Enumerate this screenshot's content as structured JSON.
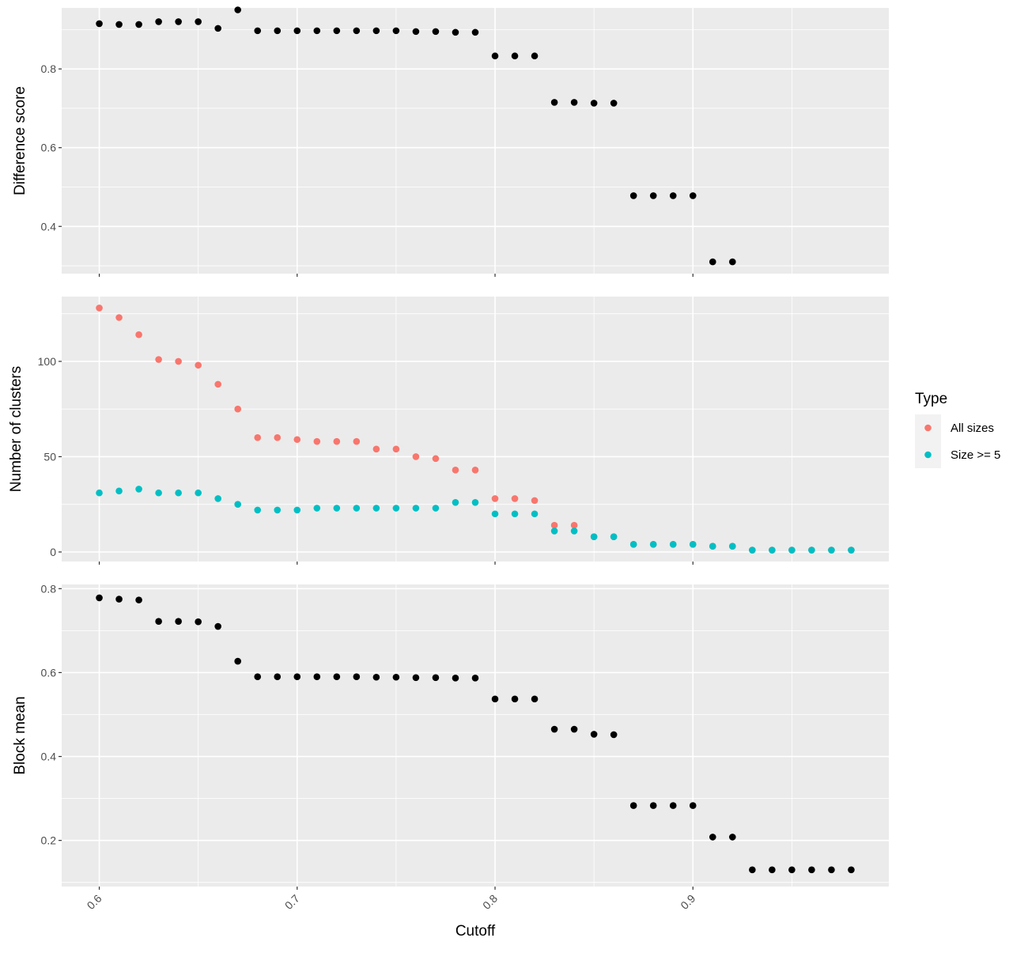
{
  "chart_data": [
    {
      "type": "scatter",
      "panel": "top",
      "ylabel": "Difference score",
      "ylim": [
        0.28,
        0.955
      ],
      "yticks": [
        0.4,
        0.6,
        0.8
      ],
      "ytick_labels": [
        "0.4",
        "0.6",
        "0.8"
      ],
      "series": [
        {
          "color": "#000000",
          "x": [
            0.6,
            0.61,
            0.62,
            0.63,
            0.64,
            0.65,
            0.66,
            0.67,
            0.68,
            0.69,
            0.7,
            0.71,
            0.72,
            0.73,
            0.74,
            0.75,
            0.76,
            0.77,
            0.78,
            0.79,
            0.8,
            0.81,
            0.82,
            0.83,
            0.84,
            0.85,
            0.86,
            0.87,
            0.88,
            0.89,
            0.9,
            0.91,
            0.92
          ],
          "y": [
            0.915,
            0.913,
            0.913,
            0.92,
            0.92,
            0.92,
            0.903,
            0.95,
            0.897,
            0.897,
            0.897,
            0.897,
            0.897,
            0.897,
            0.897,
            0.897,
            0.895,
            0.895,
            0.893,
            0.893,
            0.833,
            0.833,
            0.833,
            0.715,
            0.715,
            0.713,
            0.713,
            0.478,
            0.478,
            0.478,
            0.478,
            0.31,
            0.31
          ]
        }
      ]
    },
    {
      "type": "scatter",
      "panel": "middle",
      "ylabel": "Number of clusters",
      "ylim": [
        -5,
        134
      ],
      "yticks": [
        0,
        50,
        100
      ],
      "ytick_labels": [
        "0",
        "50",
        "100"
      ],
      "legend": {
        "title": "Type",
        "position": "right",
        "entries": [
          "All sizes",
          "Size >= 5"
        ]
      },
      "series": [
        {
          "name": "All sizes",
          "color": "#f8766d",
          "x": [
            0.6,
            0.61,
            0.62,
            0.63,
            0.64,
            0.65,
            0.66,
            0.67,
            0.68,
            0.69,
            0.7,
            0.71,
            0.72,
            0.73,
            0.74,
            0.75,
            0.76,
            0.77,
            0.78,
            0.79,
            0.8,
            0.81,
            0.82,
            0.83,
            0.84,
            0.85,
            0.86,
            0.87,
            0.88,
            0.89,
            0.9,
            0.91,
            0.92,
            0.93,
            0.94,
            0.95,
            0.96,
            0.97,
            0.98
          ],
          "y": [
            128,
            123,
            114,
            101,
            100,
            98,
            88,
            75,
            60,
            60,
            59,
            58,
            58,
            58,
            54,
            54,
            50,
            49,
            43,
            43,
            28,
            28,
            27,
            14,
            14,
            8,
            8,
            4,
            4,
            4,
            4,
            3,
            3,
            1,
            1,
            1,
            1,
            1,
            1
          ]
        },
        {
          "name": "Size >= 5",
          "color": "#00bfc4",
          "x": [
            0.6,
            0.61,
            0.62,
            0.63,
            0.64,
            0.65,
            0.66,
            0.67,
            0.68,
            0.69,
            0.7,
            0.71,
            0.72,
            0.73,
            0.74,
            0.75,
            0.76,
            0.77,
            0.78,
            0.79,
            0.8,
            0.81,
            0.82,
            0.83,
            0.84,
            0.85,
            0.86,
            0.87,
            0.88,
            0.89,
            0.9,
            0.91,
            0.92,
            0.93,
            0.94,
            0.95,
            0.96,
            0.97,
            0.98
          ],
          "y": [
            31,
            32,
            33,
            31,
            31,
            31,
            28,
            25,
            22,
            22,
            22,
            23,
            23,
            23,
            23,
            23,
            23,
            23,
            26,
            26,
            20,
            20,
            20,
            11,
            11,
            8,
            8,
            4,
            4,
            4,
            4,
            3,
            3,
            1,
            1,
            1,
            1,
            1,
            1
          ]
        }
      ]
    },
    {
      "type": "scatter",
      "panel": "bottom",
      "ylabel": "Block mean",
      "ylim": [
        0.09,
        0.81
      ],
      "yticks": [
        0.2,
        0.4,
        0.6,
        0.8
      ],
      "ytick_labels": [
        "0.2",
        "0.4",
        "0.6",
        "0.8"
      ],
      "xlabel": "Cutoff",
      "xlim": [
        0.581,
        0.999
      ],
      "xticks": [
        0.6,
        0.7,
        0.8,
        0.9
      ],
      "xtick_labels": [
        "0.6",
        "0.7",
        "0.8",
        "0.9"
      ],
      "series": [
        {
          "color": "#000000",
          "x": [
            0.6,
            0.61,
            0.62,
            0.63,
            0.64,
            0.65,
            0.66,
            0.67,
            0.68,
            0.69,
            0.7,
            0.71,
            0.72,
            0.73,
            0.74,
            0.75,
            0.76,
            0.77,
            0.78,
            0.79,
            0.8,
            0.81,
            0.82,
            0.83,
            0.84,
            0.85,
            0.86,
            0.87,
            0.88,
            0.89,
            0.9,
            0.91,
            0.92,
            0.93,
            0.94,
            0.95,
            0.96,
            0.97,
            0.98
          ],
          "y": [
            0.778,
            0.775,
            0.773,
            0.722,
            0.722,
            0.721,
            0.71,
            0.627,
            0.59,
            0.59,
            0.59,
            0.59,
            0.59,
            0.59,
            0.589,
            0.589,
            0.588,
            0.588,
            0.587,
            0.587,
            0.537,
            0.537,
            0.537,
            0.465,
            0.465,
            0.453,
            0.452,
            0.283,
            0.283,
            0.283,
            0.283,
            0.208,
            0.208,
            0.13,
            0.13,
            0.13,
            0.13,
            0.13,
            0.13
          ]
        }
      ]
    }
  ]
}
